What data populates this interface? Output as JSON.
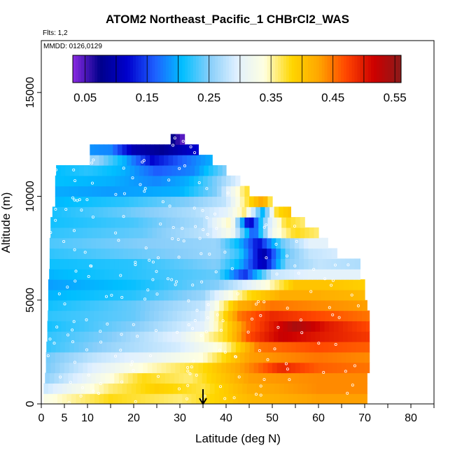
{
  "chart_data": {
    "type": "heatmap",
    "title": "ATOM2 Northeast_Pacific_1 CHBrCl2_WAS",
    "flights_note": "Flts: 1,2",
    "dates_note": "MMDD: 0126,0129",
    "xlabel": "Latitude (deg N)",
    "ylabel": "Altitude (m)",
    "xlim": [
      0,
      85
    ],
    "ylim": [
      0,
      17500
    ],
    "x_ticks": [
      0,
      5,
      10,
      20,
      30,
      40,
      50,
      60,
      70,
      80
    ],
    "y_ticks": [
      0,
      5000,
      10000,
      15000
    ],
    "colorbar": {
      "range": [
        0.03,
        0.56
      ],
      "ticks": [
        0.05,
        0.15,
        0.25,
        0.35,
        0.45,
        0.55
      ],
      "tick_labels": [
        "0.05",
        "0.15",
        "0.25",
        "0.35",
        "0.45",
        "0.55"
      ],
      "colors": [
        "#8b2be2",
        "#00008b",
        "#0000cd",
        "#1e60ff",
        "#00bfff",
        "#87cefa",
        "#e0f0ff",
        "#ffffe0",
        "#ffd700",
        "#ffa500",
        "#ff4500",
        "#cd0000",
        "#8b1a1a"
      ]
    },
    "marker": {
      "x": 35,
      "direction": "down"
    },
    "altitude_bands": [
      {
        "alt": 500,
        "lat_max": 70.5,
        "segments": [
          [
            0,
            0.33
          ],
          [
            15,
            0.38
          ],
          [
            30,
            0.36
          ],
          [
            45,
            0.41
          ],
          [
            60,
            0.43
          ],
          [
            70.5,
            0.43
          ]
        ]
      },
      {
        "alt": 1000,
        "lat_max": 70.5,
        "segments": [
          [
            0,
            0.28
          ],
          [
            15,
            0.36
          ],
          [
            25,
            0.39
          ],
          [
            35,
            0.37
          ],
          [
            45,
            0.42
          ],
          [
            60,
            0.44
          ],
          [
            70.5,
            0.44
          ]
        ]
      },
      {
        "alt": 1500,
        "lat_max": 70.5,
        "segments": [
          [
            0,
            0.25
          ],
          [
            12,
            0.32
          ],
          [
            22,
            0.38
          ],
          [
            32,
            0.36
          ],
          [
            45,
            0.43
          ],
          [
            60,
            0.44
          ],
          [
            70.5,
            0.44
          ]
        ]
      },
      {
        "alt": 2000,
        "lat_max": 71,
        "segments": [
          [
            0,
            0.24
          ],
          [
            12,
            0.3
          ],
          [
            22,
            0.34
          ],
          [
            35,
            0.38
          ],
          [
            45,
            0.44
          ],
          [
            52,
            0.49
          ],
          [
            60,
            0.46
          ],
          [
            71,
            0.45
          ]
        ]
      },
      {
        "alt": 2500,
        "lat_max": 71,
        "segments": [
          [
            0,
            0.24
          ],
          [
            12,
            0.28
          ],
          [
            25,
            0.31
          ],
          [
            35,
            0.34
          ],
          [
            45,
            0.43
          ],
          [
            60,
            0.45
          ],
          [
            71,
            0.44
          ]
        ]
      },
      {
        "alt": 3000,
        "lat_max": 71,
        "segments": [
          [
            0,
            0.22
          ],
          [
            15,
            0.26
          ],
          [
            30,
            0.29
          ],
          [
            40,
            0.35
          ],
          [
            47,
            0.45
          ],
          [
            60,
            0.47
          ],
          [
            71,
            0.46
          ]
        ]
      },
      {
        "alt": 3500,
        "lat_max": 71,
        "segments": [
          [
            0,
            0.22
          ],
          [
            15,
            0.25
          ],
          [
            30,
            0.3
          ],
          [
            40,
            0.38
          ],
          [
            45,
            0.47
          ],
          [
            52,
            0.52
          ],
          [
            60,
            0.5
          ],
          [
            71,
            0.48
          ]
        ]
      },
      {
        "alt": 4000,
        "lat_max": 71,
        "segments": [
          [
            0,
            0.21
          ],
          [
            20,
            0.25
          ],
          [
            35,
            0.3
          ],
          [
            45,
            0.46
          ],
          [
            55,
            0.54
          ],
          [
            62,
            0.5
          ],
          [
            71,
            0.47
          ]
        ]
      },
      {
        "alt": 4500,
        "lat_max": 71,
        "segments": [
          [
            0,
            0.22
          ],
          [
            20,
            0.24
          ],
          [
            35,
            0.29
          ],
          [
            43,
            0.45
          ],
          [
            50,
            0.49
          ],
          [
            60,
            0.47
          ],
          [
            71,
            0.45
          ]
        ]
      },
      {
        "alt": 5000,
        "lat_max": 70.5,
        "segments": [
          [
            0,
            0.21
          ],
          [
            20,
            0.24
          ],
          [
            35,
            0.28
          ],
          [
            43,
            0.42
          ],
          [
            50,
            0.45
          ],
          [
            60,
            0.44
          ],
          [
            70.5,
            0.43
          ]
        ]
      },
      {
        "alt": 5500,
        "lat_max": 70,
        "segments": [
          [
            0,
            0.2
          ],
          [
            20,
            0.22
          ],
          [
            35,
            0.26
          ],
          [
            45,
            0.38
          ],
          [
            52,
            0.42
          ],
          [
            60,
            0.42
          ],
          [
            70,
            0.41
          ]
        ]
      },
      {
        "alt": 6000,
        "lat_max": 70,
        "segments": [
          [
            0,
            0.19
          ],
          [
            20,
            0.21
          ],
          [
            38,
            0.25
          ],
          [
            45,
            0.3
          ],
          [
            55,
            0.4
          ],
          [
            62,
            0.4
          ],
          [
            70,
            0.39
          ]
        ]
      },
      {
        "alt": 6500,
        "lat_max": 69,
        "segments": [
          [
            0,
            0.2
          ],
          [
            20,
            0.22
          ],
          [
            38,
            0.24
          ],
          [
            44,
            0.14
          ],
          [
            50,
            0.28
          ],
          [
            58,
            0.3
          ],
          [
            69,
            0.3
          ]
        ]
      },
      {
        "alt": 7000,
        "lat_max": 69,
        "segments": [
          [
            0,
            0.21
          ],
          [
            20,
            0.22
          ],
          [
            38,
            0.25
          ],
          [
            43,
            0.2
          ],
          [
            48,
            0.1
          ],
          [
            53,
            0.25
          ],
          [
            60,
            0.28
          ],
          [
            69,
            0.27
          ]
        ]
      },
      {
        "alt": 7500,
        "lat_max": 64,
        "segments": [
          [
            0,
            0.22
          ],
          [
            20,
            0.24
          ],
          [
            38,
            0.26
          ],
          [
            43,
            0.22
          ],
          [
            48,
            0.09
          ],
          [
            53,
            0.24
          ],
          [
            58,
            0.28
          ],
          [
            64,
            0.29
          ]
        ]
      },
      {
        "alt": 8000,
        "lat_max": 62,
        "segments": [
          [
            0,
            0.23
          ],
          [
            22,
            0.25
          ],
          [
            38,
            0.26
          ],
          [
            43,
            0.2
          ],
          [
            47,
            0.12
          ],
          [
            52,
            0.24
          ],
          [
            58,
            0.3
          ],
          [
            62,
            0.3
          ]
        ]
      },
      {
        "alt": 8500,
        "lat_max": 60,
        "segments": [
          [
            0,
            0.22
          ],
          [
            22,
            0.24
          ],
          [
            36,
            0.28
          ],
          [
            41,
            0.33
          ],
          [
            46,
            0.15
          ],
          [
            50,
            0.32
          ],
          [
            55,
            0.38
          ],
          [
            60,
            0.36
          ]
        ]
      },
      {
        "alt": 9000,
        "lat_max": 57,
        "segments": [
          [
            0,
            0.21
          ],
          [
            20,
            0.23
          ],
          [
            35,
            0.27
          ],
          [
            41,
            0.35
          ],
          [
            45,
            0.1
          ],
          [
            49,
            0.28
          ],
          [
            53,
            0.38
          ],
          [
            57,
            0.36
          ]
        ]
      },
      {
        "alt": 9500,
        "lat_max": 54,
        "segments": [
          [
            0,
            0.21
          ],
          [
            18,
            0.24
          ],
          [
            33,
            0.27
          ],
          [
            40,
            0.3
          ],
          [
            44,
            0.36
          ],
          [
            48,
            0.2
          ],
          [
            51,
            0.38
          ],
          [
            54,
            0.4
          ]
        ]
      },
      {
        "alt": 10000,
        "lat_max": 50,
        "segments": [
          [
            0,
            0.2
          ],
          [
            18,
            0.22
          ],
          [
            32,
            0.25
          ],
          [
            40,
            0.28
          ],
          [
            45,
            0.38
          ],
          [
            48,
            0.43
          ],
          [
            50,
            0.35
          ]
        ]
      },
      {
        "alt": 10500,
        "lat_max": 45,
        "segments": [
          [
            0,
            0.2
          ],
          [
            15,
            0.19
          ],
          [
            30,
            0.2
          ],
          [
            38,
            0.25
          ],
          [
            43,
            0.35
          ],
          [
            45,
            0.38
          ]
        ]
      },
      {
        "alt": 11000,
        "lat_max": 43,
        "segments": [
          [
            0,
            0.21
          ],
          [
            15,
            0.2
          ],
          [
            25,
            0.18
          ],
          [
            32,
            0.2
          ],
          [
            38,
            0.25
          ],
          [
            43,
            0.3
          ]
        ]
      },
      {
        "alt": 11500,
        "lat_max": 40,
        "segments": [
          [
            0,
            0.2
          ],
          [
            10,
            0.22
          ],
          [
            18,
            0.2
          ],
          [
            25,
            0.16
          ],
          [
            33,
            0.18
          ],
          [
            40,
            0.25
          ]
        ]
      },
      {
        "alt": 12000,
        "lat_max": 37,
        "segments": [
          [
            0,
            0.22
          ],
          [
            12,
            0.26
          ],
          [
            18,
            0.2
          ],
          [
            24,
            0.12
          ],
          [
            30,
            0.16
          ],
          [
            37,
            0.2
          ]
        ]
      },
      {
        "alt": 12500,
        "lat_max": 34,
        "segments": [
          [
            0,
            0.2
          ],
          [
            15,
            0.18
          ],
          [
            20,
            0.1
          ],
          [
            26,
            0.08
          ],
          [
            30,
            0.1
          ],
          [
            34,
            0.12
          ]
        ]
      },
      {
        "alt": 13000,
        "lat_max": 31,
        "segments": [
          [
            28,
            0.08
          ],
          [
            31,
            0.04
          ]
        ]
      }
    ],
    "band_starts": {
      "500": 0.5,
      "1000": 0.5,
      "1500": 0.8,
      "2000": 1.0,
      "2500": 1.0,
      "3000": 1.1,
      "3500": 1.3,
      "4000": 1.3,
      "4500": 1.4,
      "5000": 1.5,
      "5500": 1.5,
      "6000": 1.5,
      "6500": 1.7,
      "7000": 1.8,
      "7500": 1.8,
      "8000": 1.8,
      "8500": 2.0,
      "9000": 2.0,
      "9500": 2.4,
      "10000": 3.0,
      "10500": 3.0,
      "11000": 3.0,
      "11500": 3.2,
      "12000": 10.5,
      "12500": 10.5,
      "13000": 28.0
    }
  }
}
